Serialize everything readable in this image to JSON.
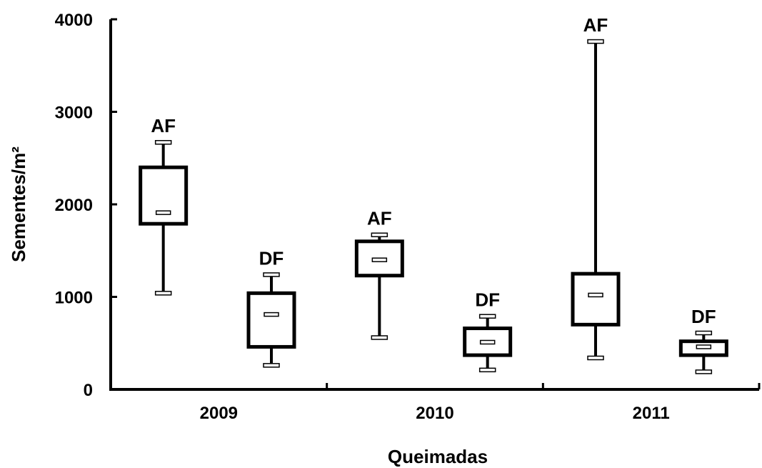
{
  "chart_data": {
    "type": "box",
    "xlabel": "Queimadas",
    "ylabel": "Sementes/m²",
    "ylim": [
      0,
      4000
    ],
    "yticks": [
      0,
      1000,
      2000,
      3000,
      4000
    ],
    "yticks_labels": [
      "0",
      "1000",
      "2000",
      "3000",
      "4000"
    ],
    "categories": [
      "2009",
      "2010",
      "2011"
    ],
    "grid": false,
    "boxes": [
      {
        "group": "2009",
        "label": "AF",
        "min": 1040,
        "q1": 1790,
        "median": 1910,
        "q3": 2400,
        "max": 2670
      },
      {
        "group": "2009",
        "label": "DF",
        "min": 260,
        "q1": 460,
        "median": 810,
        "q3": 1040,
        "max": 1240
      },
      {
        "group": "2010",
        "label": "AF",
        "min": 560,
        "q1": 1230,
        "median": 1400,
        "q3": 1600,
        "max": 1670
      },
      {
        "group": "2010",
        "label": "DF",
        "min": 210,
        "q1": 370,
        "median": 510,
        "q3": 660,
        "max": 790
      },
      {
        "group": "2011",
        "label": "AF",
        "min": 340,
        "q1": 700,
        "median": 1020,
        "q3": 1250,
        "max": 3760
      },
      {
        "group": "2011",
        "label": "DF",
        "min": 190,
        "q1": 370,
        "median": 460,
        "q3": 520,
        "max": 610
      }
    ]
  }
}
